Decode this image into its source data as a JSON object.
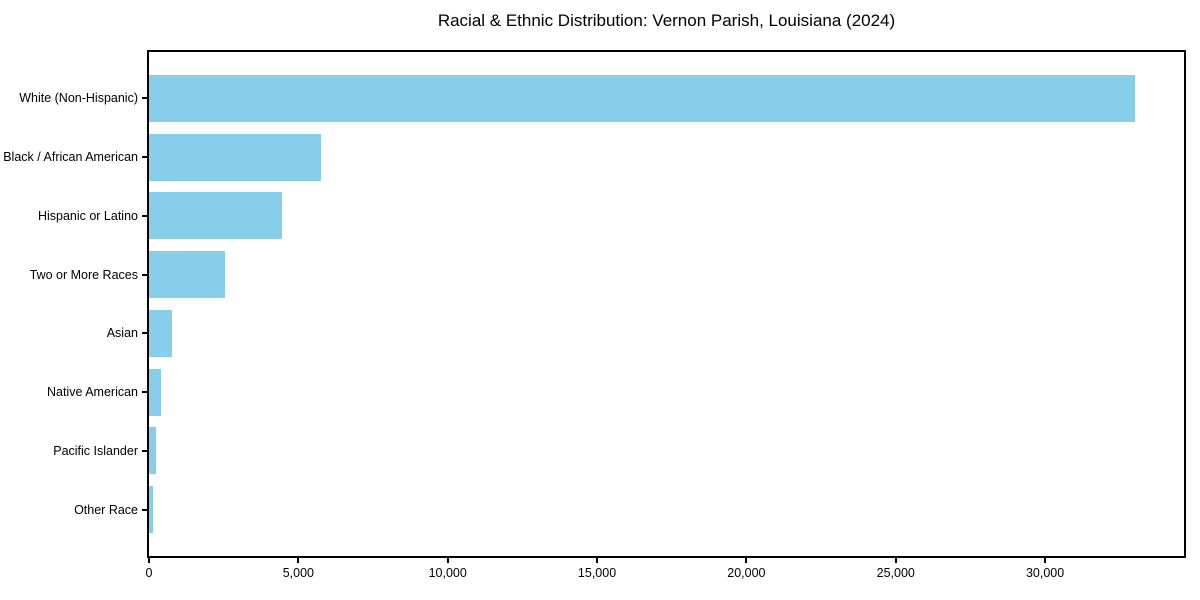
{
  "figure": {
    "title": "Racial & Ethnic Distribution: Vernon Parish, Louisiana (2024)"
  },
  "chart_data": {
    "type": "bar",
    "orientation": "horizontal",
    "title": "Racial & Ethnic Distribution: Vernon Parish, Louisiana (2024)",
    "categories": [
      "White (Non-Hispanic)",
      "Black / African American",
      "Hispanic or Latino",
      "Two or More Races",
      "Asian",
      "Native American",
      "Pacific Islander",
      "Other Race"
    ],
    "values": [
      33000,
      5770,
      4440,
      2560,
      760,
      390,
      240,
      130
    ],
    "bar_color": "#87CEEB",
    "xlabel": "",
    "ylabel": "",
    "xlim": [
      0,
      34650
    ],
    "x_ticks": [
      0,
      5000,
      10000,
      15000,
      20000,
      25000,
      30000
    ],
    "x_tick_labels": [
      "0",
      "5,000",
      "10,000",
      "15,000",
      "20,000",
      "25,000",
      "30,000"
    ],
    "grid": false,
    "legend": "none",
    "bar_thickness_fraction": 0.8,
    "axis_padding_fraction": 0.79
  }
}
